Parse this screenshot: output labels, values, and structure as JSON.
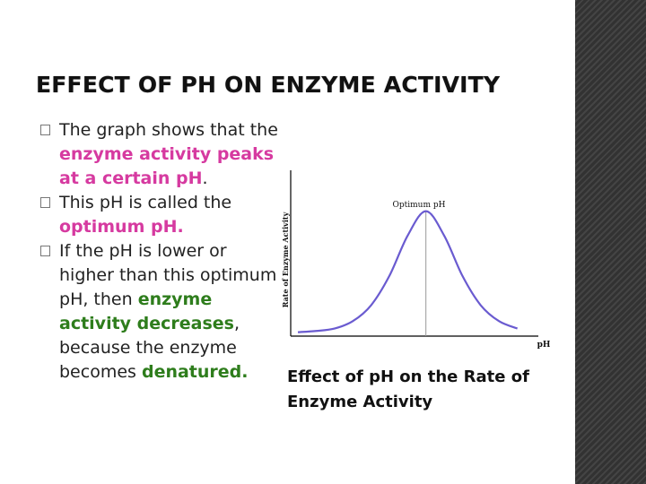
{
  "slide": {
    "title": "EFFECT OF PH ON ENZYME ACTIVITY",
    "bullets": [
      {
        "marker": "",
        "parts": [
          {
            "text": "The graph shows that the ",
            "style": "normal"
          },
          {
            "text": "enzyme activity peaks at a certain p",
            "style": "pink"
          },
          {
            "text": "H",
            "style": "pink"
          },
          {
            "text": ".",
            "style": "normal"
          }
        ]
      },
      {
        "parts": [
          {
            "text": "This p",
            "style": "normal"
          },
          {
            "text": "H is called the ",
            "style": "normal"
          },
          {
            "text": "optimum p",
            "style": "pink"
          },
          {
            "text": "H.",
            "style": "pink"
          }
        ]
      },
      {
        "parts": [
          {
            "text": "If the p",
            "style": "normal"
          },
          {
            "text": "H is lower or higher than this optimum p",
            "style": "normal"
          },
          {
            "text": "H, then ",
            "style": "normal"
          },
          {
            "text": "enzyme activity decreases",
            "style": "green"
          },
          {
            "text": ", because the enzyme becomes ",
            "style": "normal"
          },
          {
            "text": "denatured.",
            "style": "green"
          }
        ]
      }
    ],
    "caption": "Effect of pH on the Rate of Enzyme Activity"
  },
  "chart_data": {
    "type": "line",
    "title": "",
    "xlabel": "pH",
    "ylabel": "Rate of Enzyme Activity",
    "annotations": [
      "Optimum pH"
    ],
    "series": [
      {
        "x": [
          0,
          1,
          2,
          3,
          4,
          5,
          6,
          7,
          8,
          9,
          10,
          11,
          12
        ],
        "y": [
          1,
          2,
          4,
          10,
          23,
          47,
          80,
          100,
          80,
          47,
          23,
          10,
          4
        ]
      }
    ],
    "xlim": [
      0,
      13
    ],
    "ylim": [
      0,
      110
    ],
    "grid": false,
    "legend": "none",
    "colors": {
      "curve": "#6a5bd0",
      "axis": "#000000",
      "optimum_line": "#999999"
    }
  },
  "colors": {
    "pink": "#d63aa0",
    "green": "#2e7d1c",
    "sidebar": "#3a3a3a"
  }
}
